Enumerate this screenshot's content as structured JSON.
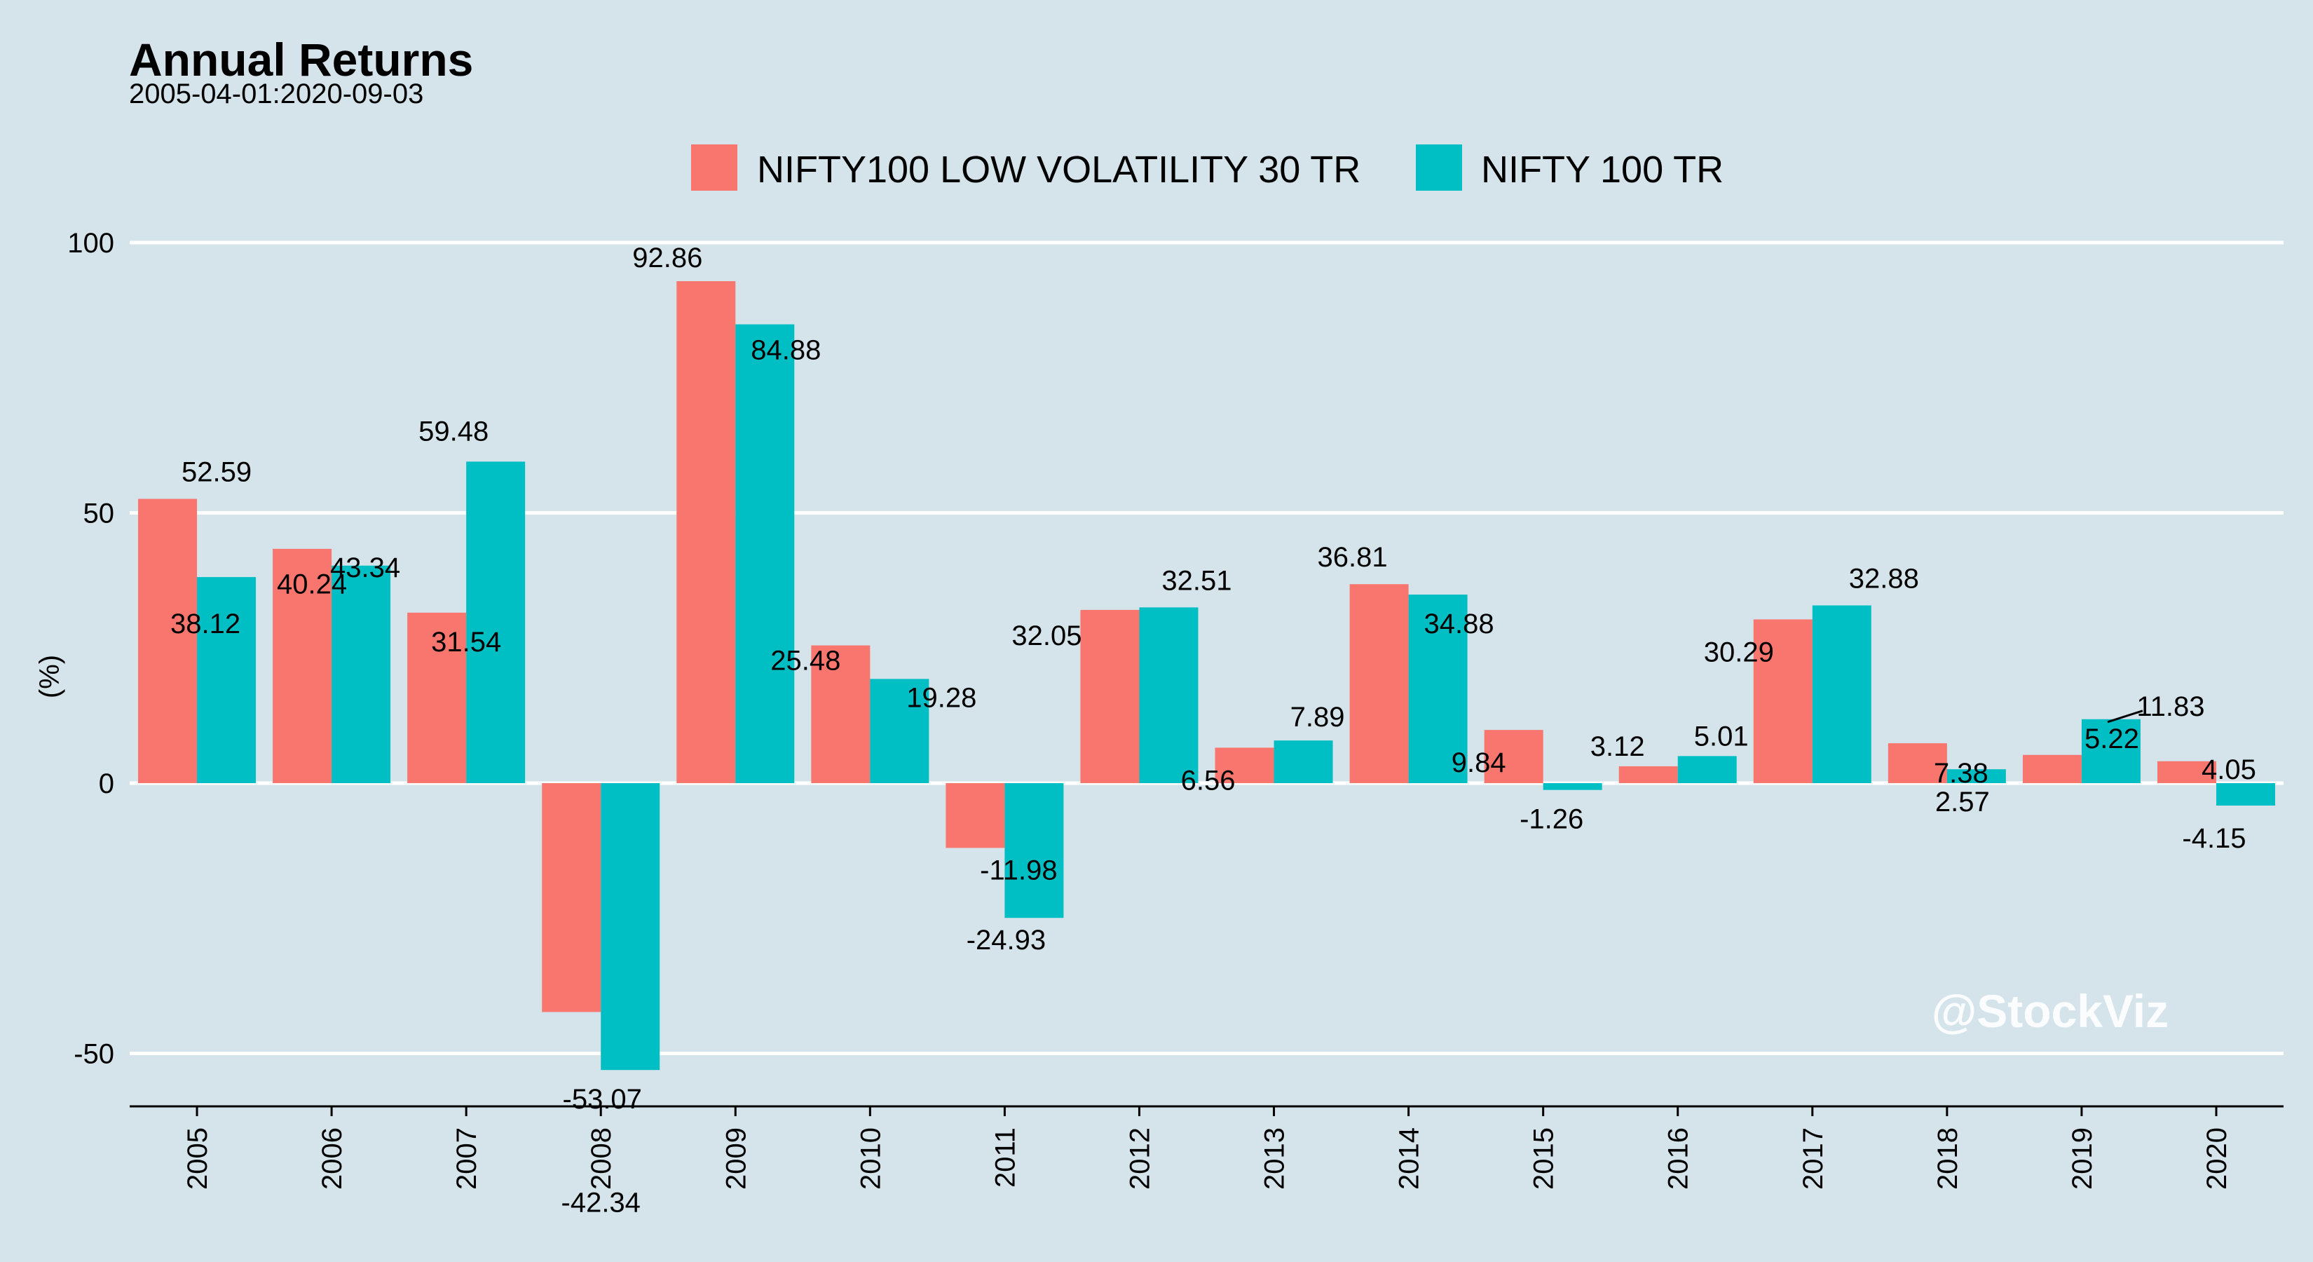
{
  "chart_data": {
    "type": "bar",
    "title": "Annual Returns",
    "subtitle": "2005-04-01:2020-09-03",
    "ylabel": "(%)",
    "xlabel": "",
    "ylim": [
      -60,
      100
    ],
    "yticks": [
      -50,
      0,
      50,
      100
    ],
    "grid": true,
    "legend_position": "top",
    "categories": [
      "2005",
      "2006",
      "2007",
      "2008",
      "2009",
      "2010",
      "2011",
      "2012",
      "2013",
      "2014",
      "2015",
      "2016",
      "2017",
      "2018",
      "2019",
      "2020"
    ],
    "series": [
      {
        "name": "NIFTY100 LOW VOLATILITY 30 TR",
        "color": "#f8766d",
        "values": [
          52.59,
          43.34,
          31.54,
          -42.34,
          92.86,
          25.48,
          -11.98,
          32.05,
          6.56,
          36.81,
          9.84,
          3.12,
          30.29,
          7.38,
          5.22,
          4.05
        ]
      },
      {
        "name": "NIFTY 100 TR",
        "color": "#00bfc4",
        "values": [
          38.12,
          40.24,
          59.48,
          -53.07,
          84.88,
          19.28,
          -24.93,
          32.51,
          7.89,
          34.88,
          -1.26,
          5.01,
          32.88,
          2.57,
          11.83,
          -4.15
        ]
      }
    ],
    "annotations": [
      "@StockViz"
    ]
  },
  "colors": {
    "background": "#d5e4eb",
    "gridline": "#ffffff",
    "axis": "#000000"
  }
}
